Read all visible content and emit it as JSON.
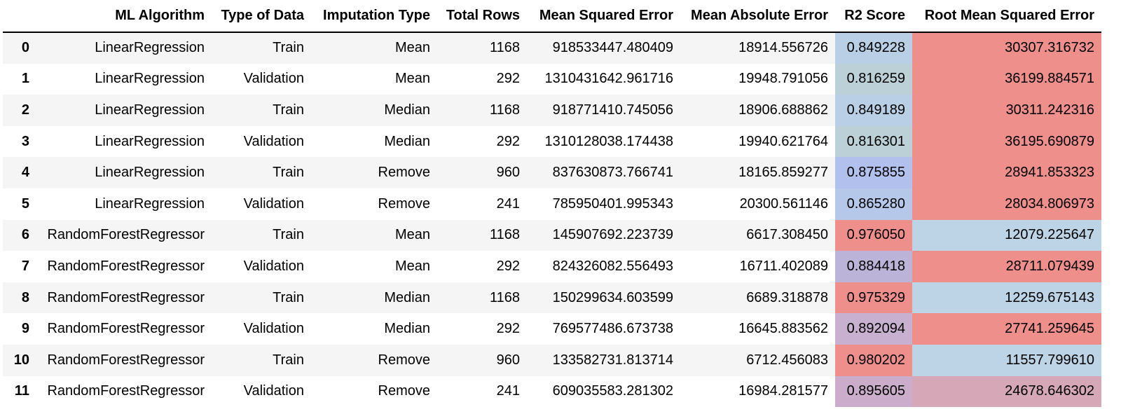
{
  "table": {
    "headers": {
      "index": "",
      "algorithm": "ML Algorithm",
      "data_type": "Type of Data",
      "imputation": "Imputation Type",
      "total_rows": "Total Rows",
      "mse": "Mean Squared Error",
      "mae": "Mean Absolute Error",
      "r2": "R2 Score",
      "rmse": "Root Mean Squared Error"
    },
    "rows": [
      {
        "index": "0",
        "algorithm": "LinearRegression",
        "data_type": "Train",
        "imputation": "Mean",
        "total_rows": "1168",
        "mse": "918533447.480409",
        "mae": "18914.556726",
        "r2": "0.849228",
        "rmse": "30307.316732"
      },
      {
        "index": "1",
        "algorithm": "LinearRegression",
        "data_type": "Validation",
        "imputation": "Mean",
        "total_rows": "292",
        "mse": "1310431642.961716",
        "mae": "19948.791056",
        "r2": "0.816259",
        "rmse": "36199.884571"
      },
      {
        "index": "2",
        "algorithm": "LinearRegression",
        "data_type": "Train",
        "imputation": "Median",
        "total_rows": "1168",
        "mse": "918771410.745056",
        "mae": "18906.688862",
        "r2": "0.849189",
        "rmse": "30311.242316"
      },
      {
        "index": "3",
        "algorithm": "LinearRegression",
        "data_type": "Validation",
        "imputation": "Median",
        "total_rows": "292",
        "mse": "1310128038.174438",
        "mae": "19940.621764",
        "r2": "0.816301",
        "rmse": "36195.690879"
      },
      {
        "index": "4",
        "algorithm": "LinearRegression",
        "data_type": "Train",
        "imputation": "Remove",
        "total_rows": "960",
        "mse": "837630873.766741",
        "mae": "18165.859277",
        "r2": "0.875855",
        "rmse": "28941.853323"
      },
      {
        "index": "5",
        "algorithm": "LinearRegression",
        "data_type": "Validation",
        "imputation": "Remove",
        "total_rows": "241",
        "mse": "785950401.995343",
        "mae": "20300.561146",
        "r2": "0.865280",
        "rmse": "28034.806973"
      },
      {
        "index": "6",
        "algorithm": "RandomForestRegressor",
        "data_type": "Train",
        "imputation": "Mean",
        "total_rows": "1168",
        "mse": "145907692.223739",
        "mae": "6617.308450",
        "r2": "0.976050",
        "rmse": "12079.225647"
      },
      {
        "index": "7",
        "algorithm": "RandomForestRegressor",
        "data_type": "Validation",
        "imputation": "Mean",
        "total_rows": "292",
        "mse": "824326082.556493",
        "mae": "16711.402089",
        "r2": "0.884418",
        "rmse": "28711.079439"
      },
      {
        "index": "8",
        "algorithm": "RandomForestRegressor",
        "data_type": "Train",
        "imputation": "Median",
        "total_rows": "1168",
        "mse": "150299634.603599",
        "mae": "6689.318878",
        "r2": "0.975329",
        "rmse": "12259.675143"
      },
      {
        "index": "9",
        "algorithm": "RandomForestRegressor",
        "data_type": "Validation",
        "imputation": "Median",
        "total_rows": "292",
        "mse": "769577486.673738",
        "mae": "16645.883562",
        "r2": "0.892094",
        "rmse": "27741.259645"
      },
      {
        "index": "10",
        "algorithm": "RandomForestRegressor",
        "data_type": "Train",
        "imputation": "Remove",
        "total_rows": "960",
        "mse": "133582731.813714",
        "mae": "6712.456083",
        "r2": "0.980202",
        "rmse": "11557.799610"
      },
      {
        "index": "11",
        "algorithm": "RandomForestRegressor",
        "data_type": "Validation",
        "imputation": "Remove",
        "total_rows": "241",
        "mse": "609035583.281302",
        "mae": "16984.281577",
        "r2": "0.895605",
        "rmse": "24678.646302"
      }
    ],
    "cell_colors": {
      "r2": [
        "#b8cfe6",
        "#bcd0d8",
        "#b8cfe6",
        "#bcd0d8",
        "#b1c0ec",
        "#b6c8ea",
        "#ee8f8c",
        "#bcb4d8",
        "#ee8f8c",
        "#c8b0d0",
        "#ee8f8c",
        "#ccaccb"
      ],
      "rmse": [
        "#ee8f8c",
        "#ee8f8c",
        "#ee8f8c",
        "#ee8f8c",
        "#ee8f8c",
        "#ee8f8c",
        "#bdd3e6",
        "#ee8f8c",
        "#bdd3e6",
        "#ee8f8c",
        "#bdd3e6",
        "#d5a7b7"
      ]
    }
  }
}
